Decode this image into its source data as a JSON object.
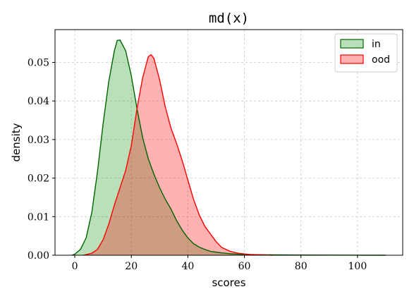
{
  "chart_data": {
    "type": "area",
    "title": "md(x)",
    "xlabel": "scores",
    "ylabel": "density",
    "xlim": [
      -7,
      116
    ],
    "ylim": [
      0,
      0.0585
    ],
    "xticks": [
      0,
      20,
      40,
      60,
      80,
      100
    ],
    "yticks": [
      0.0,
      0.01,
      0.02,
      0.03,
      0.04,
      0.05
    ],
    "xtick_labels": [
      "0",
      "20",
      "40",
      "60",
      "80",
      "100"
    ],
    "ytick_labels": [
      "0.00",
      "0.01",
      "0.02",
      "0.03",
      "0.04",
      "0.05"
    ],
    "grid": true,
    "legend_position": "top-right",
    "series": [
      {
        "name": "in",
        "line_color": "#006400",
        "fill_color": "#2ca02c",
        "fill_opacity": 0.33,
        "points": [
          [
            -1,
            0
          ],
          [
            0,
            0.0003
          ],
          [
            2,
            0.0015
          ],
          [
            4,
            0.0045
          ],
          [
            6,
            0.011
          ],
          [
            8,
            0.0215
          ],
          [
            10,
            0.034
          ],
          [
            12,
            0.045
          ],
          [
            14,
            0.053
          ],
          [
            15,
            0.0557
          ],
          [
            16,
            0.0558
          ],
          [
            18,
            0.053
          ],
          [
            20,
            0.0465
          ],
          [
            22,
            0.038
          ],
          [
            24,
            0.0305
          ],
          [
            26,
            0.025
          ],
          [
            28,
            0.021
          ],
          [
            30,
            0.0175
          ],
          [
            32,
            0.0145
          ],
          [
            34,
            0.012
          ],
          [
            36,
            0.009
          ],
          [
            38,
            0.0065
          ],
          [
            40,
            0.0045
          ],
          [
            42,
            0.003
          ],
          [
            44,
            0.0021
          ],
          [
            46,
            0.0015
          ],
          [
            48,
            0.001
          ],
          [
            50,
            0.0008
          ],
          [
            52,
            0.0006
          ],
          [
            55,
            0.0004
          ],
          [
            60,
            0.0002
          ],
          [
            70,
            0.0001
          ],
          [
            80,
            5e-05
          ],
          [
            90,
            3e-05
          ],
          [
            100,
            2e-05
          ],
          [
            110,
            0
          ]
        ]
      },
      {
        "name": "ood",
        "line_color": "#ff0000",
        "fill_color": "#ff0000",
        "fill_opacity": 0.3,
        "points": [
          [
            3,
            0
          ],
          [
            6,
            0.0005
          ],
          [
            8,
            0.0015
          ],
          [
            10,
            0.004
          ],
          [
            12,
            0.008
          ],
          [
            14,
            0.013
          ],
          [
            16,
            0.0175
          ],
          [
            18,
            0.022
          ],
          [
            20,
            0.0285
          ],
          [
            22,
            0.038
          ],
          [
            24,
            0.046
          ],
          [
            26,
            0.0515
          ],
          [
            27,
            0.052
          ],
          [
            28,
            0.051
          ],
          [
            30,
            0.0455
          ],
          [
            32,
            0.0385
          ],
          [
            34,
            0.033
          ],
          [
            36,
            0.029
          ],
          [
            38,
            0.0245
          ],
          [
            40,
            0.0195
          ],
          [
            42,
            0.0145
          ],
          [
            44,
            0.0105
          ],
          [
            46,
            0.0075
          ],
          [
            48,
            0.0055
          ],
          [
            50,
            0.0035
          ],
          [
            52,
            0.002
          ],
          [
            55,
            0.001
          ],
          [
            58,
            0.0005
          ],
          [
            62,
            0.0002
          ],
          [
            66,
            0.0001
          ],
          [
            70,
            0
          ]
        ]
      }
    ]
  }
}
